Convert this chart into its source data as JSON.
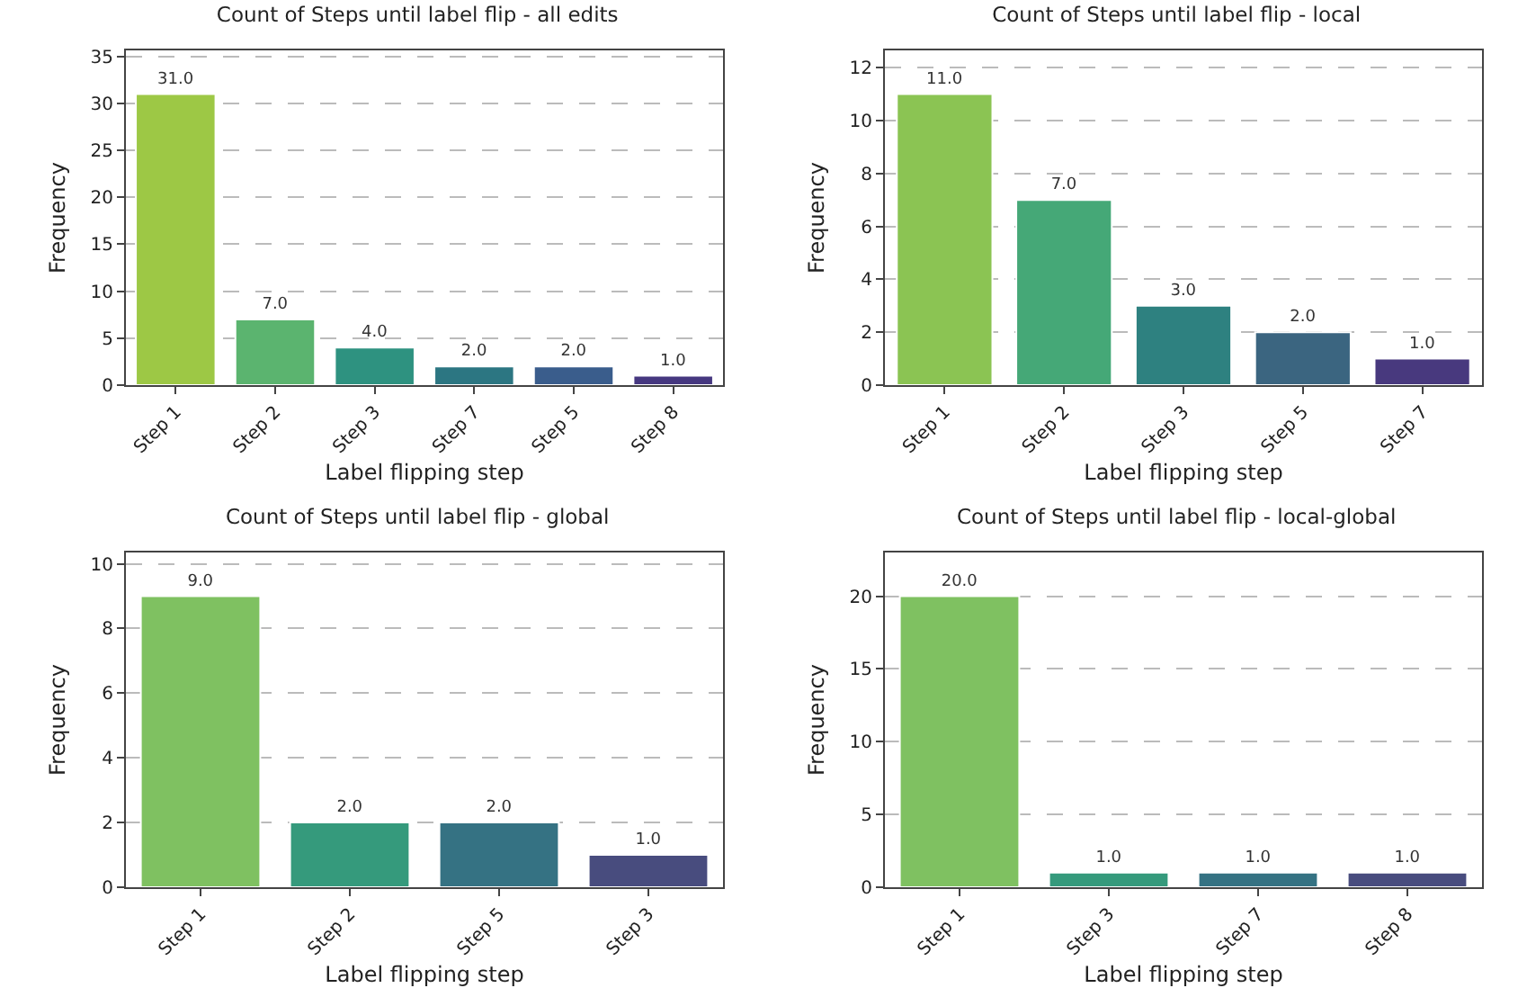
{
  "chart_data": [
    {
      "type": "bar",
      "title": "Count of Steps until label flip - all edits",
      "xlabel": "Label flipping step",
      "ylabel": "Frequency",
      "categories": [
        "Step 1",
        "Step 2",
        "Step 3",
        "Step 7",
        "Step 5",
        "Step 8"
      ],
      "values": [
        31,
        7,
        4,
        2,
        2,
        1
      ],
      "value_labels": [
        "31.0",
        "7.0",
        "4.0",
        "2.0",
        "2.0",
        "1.0"
      ],
      "colors": [
        "#9dc845",
        "#5bb46f",
        "#2e9280",
        "#2c7682",
        "#3a5d8c",
        "#463880"
      ],
      "ylim": [
        0,
        35.65
      ],
      "yticks": [
        0,
        5,
        10,
        15,
        20,
        25,
        30,
        35
      ],
      "grid": "y"
    },
    {
      "type": "bar",
      "title": "Count of Steps until label flip - local",
      "xlabel": "Label flipping step",
      "ylabel": "Frequency",
      "categories": [
        "Step 1",
        "Step 2",
        "Step 3",
        "Step 5",
        "Step 7"
      ],
      "values": [
        11,
        7,
        3,
        2,
        1
      ],
      "value_labels": [
        "11.0",
        "7.0",
        "3.0",
        "2.0",
        "1.0"
      ],
      "colors": [
        "#8bc453",
        "#45a877",
        "#2e8180",
        "#3b6580",
        "#48397e"
      ],
      "ylim": [
        0,
        12.65
      ],
      "yticks": [
        0,
        2,
        4,
        6,
        8,
        10,
        12
      ],
      "grid": "y"
    },
    {
      "type": "bar",
      "title": "Count of Steps until label flip - global",
      "xlabel": "Label flipping step",
      "ylabel": "Frequency",
      "categories": [
        "Step 1",
        "Step 2",
        "Step 5",
        "Step 3"
      ],
      "values": [
        9,
        2,
        2,
        1
      ],
      "value_labels": [
        "9.0",
        "2.0",
        "2.0",
        "1.0"
      ],
      "colors": [
        "#7fc161",
        "#359a7c",
        "#357283",
        "#484c7e"
      ],
      "ylim": [
        0,
        10.35
      ],
      "yticks": [
        0,
        2,
        4,
        6,
        8,
        10
      ],
      "grid": "y"
    },
    {
      "type": "bar",
      "title": "Count of Steps until label flip - local-global",
      "xlabel": "Label flipping step",
      "ylabel": "Frequency",
      "categories": [
        "Step 1",
        "Step 3",
        "Step 7",
        "Step 8"
      ],
      "values": [
        20,
        1,
        1,
        1
      ],
      "value_labels": [
        "20.0",
        "1.0",
        "1.0",
        "1.0"
      ],
      "colors": [
        "#7fc161",
        "#359a7c",
        "#357283",
        "#484c7e"
      ],
      "ylim": [
        0,
        23
      ],
      "yticks": [
        0,
        5,
        10,
        15,
        20
      ],
      "grid": "y"
    }
  ]
}
